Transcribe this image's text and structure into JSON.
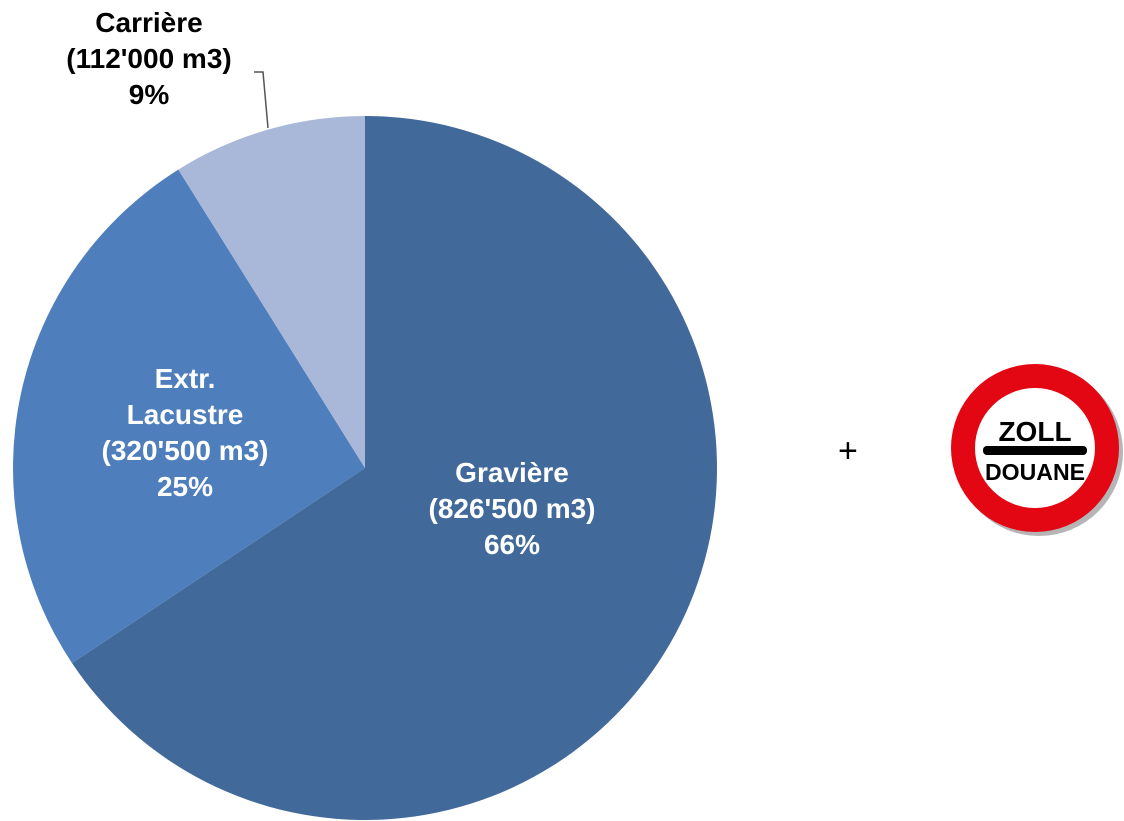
{
  "chart_data": {
    "type": "pie",
    "start_angle_deg": 0,
    "direction": "clockwise",
    "slices": [
      {
        "label": "Gravière",
        "volume": "(826'500 m3)",
        "value": 826500,
        "percent": "66%",
        "color": "#41699A",
        "label_color": "#ffffff"
      },
      {
        "label": "Extr. Lacustre",
        "label_lines": [
          "Extr.",
          "Lacustre"
        ],
        "volume": "(320'500 m3)",
        "value": 320500,
        "percent": "25%",
        "color": "#4E7EBB",
        "label_color": "#ffffff"
      },
      {
        "label": "Carrière",
        "volume": "(112'000 m3)",
        "value": 112000,
        "percent": "9%",
        "color": "#A9B8D8",
        "label_color": "#000000",
        "label_outside": true
      }
    ]
  },
  "plus_sign": "+",
  "customs_sign": {
    "icon": "customs-stop-sign-icon",
    "line1": "ZOLL",
    "line2": "DOUANE",
    "ring_color": "#E30613",
    "center_color": "#ffffff",
    "text_color": "#000000"
  }
}
